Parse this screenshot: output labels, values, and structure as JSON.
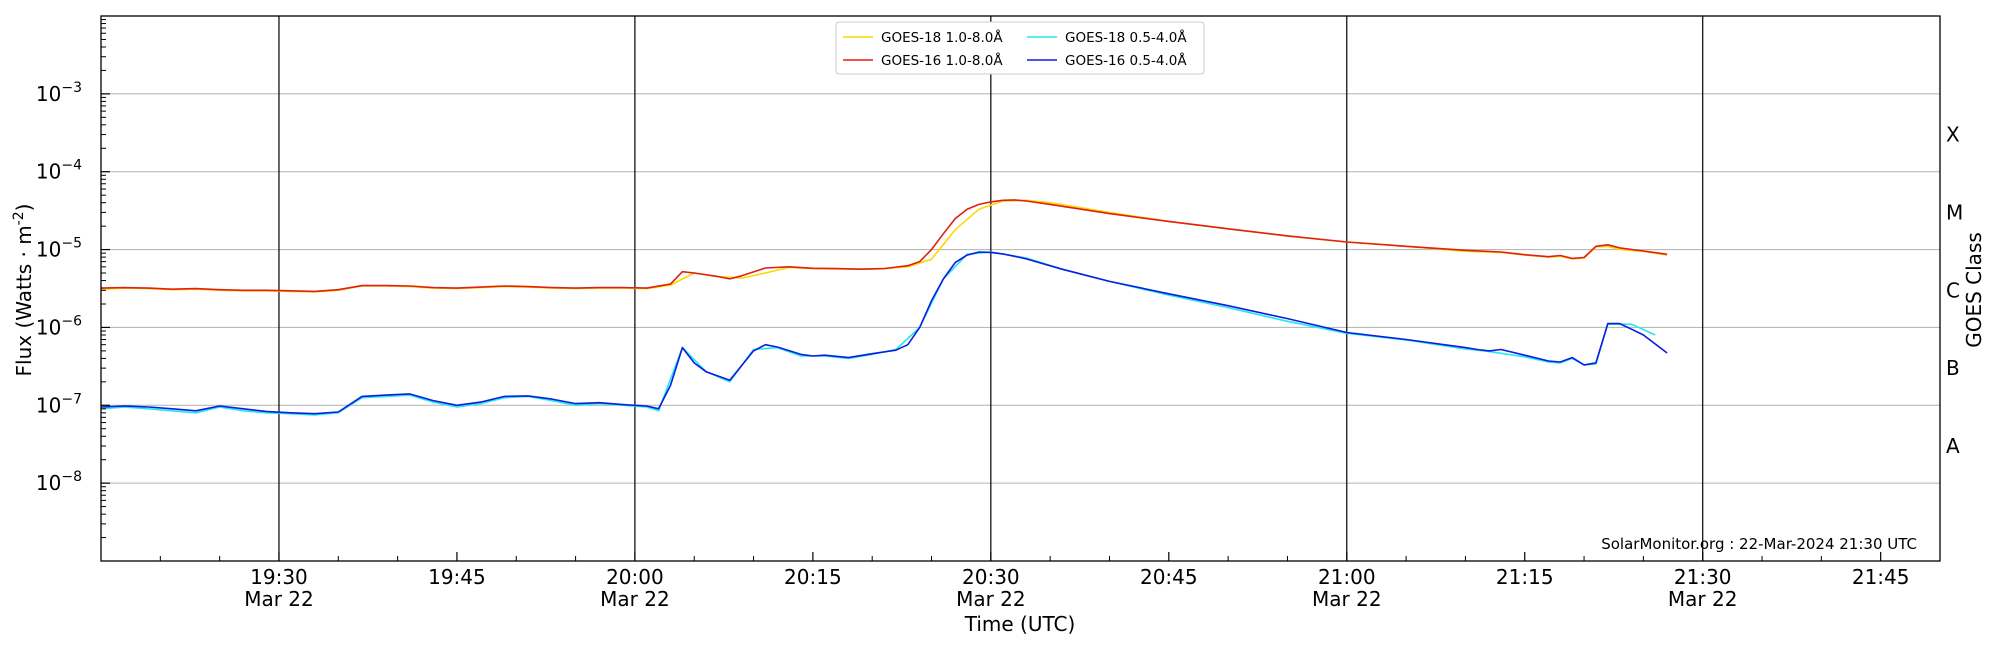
{
  "chart_data": {
    "type": "line",
    "xlabel": "Time (UTC)",
    "ylabel": "Flux (Watts · m",
    "ylabel_sup": "-2",
    "ylabel_close": ")",
    "right_label": "GOES Class",
    "yscale": "log",
    "ylim": [
      1e-09,
      0.01
    ],
    "xlim": [
      "19:15",
      "21:50"
    ],
    "y_ticks": [
      {
        "value": 1e-08,
        "base": "10",
        "exp": "−8"
      },
      {
        "value": 1e-07,
        "base": "10",
        "exp": "−7"
      },
      {
        "value": 1e-06,
        "base": "10",
        "exp": "−6"
      },
      {
        "value": 1e-05,
        "base": "10",
        "exp": "−5"
      },
      {
        "value": 0.0001,
        "base": "10",
        "exp": "−4"
      },
      {
        "value": 0.001,
        "base": "10",
        "exp": "−3"
      }
    ],
    "x_ticks": [
      {
        "time": "19:30",
        "line1": "19:30",
        "line2": "Mar 22",
        "major": true
      },
      {
        "time": "19:45",
        "line1": "19:45",
        "line2": "",
        "major": false
      },
      {
        "time": "20:00",
        "line1": "20:00",
        "line2": "Mar 22",
        "major": true
      },
      {
        "time": "20:15",
        "line1": "20:15",
        "line2": "",
        "major": false
      },
      {
        "time": "20:30",
        "line1": "20:30",
        "line2": "Mar 22",
        "major": true
      },
      {
        "time": "20:45",
        "line1": "20:45",
        "line2": "",
        "major": false
      },
      {
        "time": "21:00",
        "line1": "21:00",
        "line2": "Mar 22",
        "major": true
      },
      {
        "time": "21:15",
        "line1": "21:15",
        "line2": "",
        "major": false
      },
      {
        "time": "21:30",
        "line1": "21:30",
        "line2": "Mar 22",
        "major": true
      },
      {
        "time": "21:45",
        "line1": "21:45",
        "line2": "",
        "major": false
      }
    ],
    "goes_classes": [
      {
        "label": "A",
        "value": 3e-08
      },
      {
        "label": "B",
        "value": 3e-07
      },
      {
        "label": "C",
        "value": 3e-06
      },
      {
        "label": "M",
        "value": 3e-05
      },
      {
        "label": "X",
        "value": 0.0003
      }
    ],
    "grid": true,
    "legend_position": "top-center",
    "credit": "SolarMonitor.org : 22-Mar-2024 21:30 UTC",
    "series": [
      {
        "name": "GOES-18 1.0-8.0Å",
        "color": "#ffd700",
        "x": [
          "19:15",
          "19:17",
          "19:19",
          "19:21",
          "19:23",
          "19:25",
          "19:27",
          "19:29",
          "19:31",
          "19:33",
          "19:35",
          "19:37",
          "19:39",
          "19:41",
          "19:43",
          "19:45",
          "19:47",
          "19:49",
          "19:51",
          "19:53",
          "19:55",
          "19:57",
          "19:59",
          "20:01",
          "20:03",
          "20:05",
          "20:07",
          "20:09",
          "20:11",
          "20:13",
          "20:15",
          "20:17",
          "20:19",
          "20:21",
          "20:23",
          "20:25",
          "20:27",
          "20:29",
          "20:31",
          "20:33",
          "20:35",
          "20:40",
          "20:45",
          "20:50",
          "20:55",
          "21:00",
          "21:05",
          "21:10",
          "21:13",
          "21:15",
          "21:17",
          "21:18",
          "21:19",
          "21:20",
          "21:21",
          "21:22",
          "21:23",
          "21:25",
          "21:27"
        ],
        "y": [
          3.1e-06,
          3.2e-06,
          3.15e-06,
          3.05e-06,
          3.1e-06,
          3e-06,
          2.95e-06,
          2.95e-06,
          2.9e-06,
          2.85e-06,
          3e-06,
          3.4e-06,
          3.4e-06,
          3.35e-06,
          3.2e-06,
          3.15e-06,
          3.25e-06,
          3.35e-06,
          3.3e-06,
          3.2e-06,
          3.15e-06,
          3.2e-06,
          3.2e-06,
          3.15e-06,
          3.5e-06,
          5e-06,
          4.5e-06,
          4.3e-06,
          5e-06,
          5.9e-06,
          5.7e-06,
          5.65e-06,
          5.6e-06,
          5.7e-06,
          6e-06,
          7.5e-06,
          1.8e-05,
          3.3e-05,
          4.2e-05,
          4.3e-05,
          4e-05,
          3e-05,
          2.3e-05,
          1.85e-05,
          1.5e-05,
          1.25e-05,
          1.1e-05,
          9.5e-06,
          9.2e-06,
          8.5e-06,
          8e-06,
          8.2e-06,
          7.6e-06,
          7.8e-06,
          1.08e-05,
          1.1e-05,
          1e-05,
          9.5e-06,
          8.5e-06
        ]
      },
      {
        "name": "GOES-18 0.5-4.0Å",
        "color": "#20e8f0",
        "x": [
          "19:15",
          "19:17",
          "19:19",
          "19:21",
          "19:23",
          "19:25",
          "19:27",
          "19:29",
          "19:31",
          "19:33",
          "19:35",
          "19:37",
          "19:39",
          "19:41",
          "19:43",
          "19:45",
          "19:47",
          "19:49",
          "19:51",
          "19:53",
          "19:55",
          "19:57",
          "19:59",
          "20:01",
          "20:02",
          "20:04",
          "20:06",
          "20:08",
          "20:10",
          "20:12",
          "20:14",
          "20:16",
          "20:18",
          "20:20",
          "20:22",
          "20:24",
          "20:26",
          "20:28",
          "20:30",
          "20:33",
          "20:36",
          "20:40",
          "20:45",
          "20:50",
          "20:55",
          "21:00",
          "21:05",
          "21:10",
          "21:12",
          "21:15",
          "21:17",
          "21:18",
          "21:19",
          "21:20",
          "21:21",
          "21:22",
          "21:24",
          "21:26"
        ],
        "y": [
          9e-08,
          9.5e-08,
          9e-08,
          8.5e-08,
          8e-08,
          9.5e-08,
          8.5e-08,
          8e-08,
          7.8e-08,
          7.5e-08,
          8e-08,
          1.25e-07,
          1.3e-07,
          1.35e-07,
          1.1e-07,
          9.5e-08,
          1.05e-07,
          1.25e-07,
          1.3e-07,
          1.15e-07,
          1e-07,
          1.05e-07,
          1e-07,
          9.5e-08,
          8.5e-08,
          5.5e-07,
          2.7e-07,
          2e-07,
          5.2e-07,
          5.5e-07,
          4.3e-07,
          4.3e-07,
          4e-07,
          4.5e-07,
          5.2e-07,
          1e-06,
          4.2e-06,
          8.7e-06,
          9.3e-06,
          7.8e-06,
          5.6e-06,
          3.9e-06,
          2.6e-06,
          1.8e-06,
          1.2e-06,
          8.4e-07,
          6.9e-07,
          5.3e-07,
          4.9e-07,
          4.2e-07,
          3.6e-07,
          3.5e-07,
          4e-07,
          3.3e-07,
          3.4e-07,
          1.1e-06,
          1.1e-06,
          8e-07
        ]
      },
      {
        "name": "GOES-16 1.0-8.0Å",
        "color": "#e02010",
        "x": [
          "19:15",
          "19:17",
          "19:19",
          "19:21",
          "19:23",
          "19:25",
          "19:27",
          "19:29",
          "19:31",
          "19:33",
          "19:35",
          "19:37",
          "19:39",
          "19:41",
          "19:43",
          "19:45",
          "19:47",
          "19:49",
          "19:51",
          "19:53",
          "19:55",
          "19:57",
          "19:59",
          "20:01",
          "20:03",
          "20:04",
          "20:05",
          "20:07",
          "20:08",
          "20:09",
          "20:11",
          "20:13",
          "20:15",
          "20:17",
          "20:19",
          "20:21",
          "20:23",
          "20:24",
          "20:25",
          "20:26",
          "20:27",
          "20:28",
          "20:29",
          "20:30",
          "20:31",
          "20:32",
          "20:33",
          "20:35",
          "20:40",
          "20:45",
          "20:50",
          "20:55",
          "21:00",
          "21:05",
          "21:10",
          "21:13",
          "21:15",
          "21:17",
          "21:18",
          "21:19",
          "21:20",
          "21:21",
          "21:22",
          "21:23",
          "21:25",
          "21:27"
        ],
        "y": [
          3.2e-06,
          3.25e-06,
          3.2e-06,
          3.1e-06,
          3.15e-06,
          3.05e-06,
          3e-06,
          3e-06,
          2.95e-06,
          2.9e-06,
          3.05e-06,
          3.45e-06,
          3.45e-06,
          3.4e-06,
          3.25e-06,
          3.2e-06,
          3.3e-06,
          3.4e-06,
          3.35e-06,
          3.25e-06,
          3.2e-06,
          3.25e-06,
          3.25e-06,
          3.2e-06,
          3.6e-06,
          5.2e-06,
          5e-06,
          4.5e-06,
          4.2e-06,
          4.6e-06,
          5.8e-06,
          6e-06,
          5.75e-06,
          5.7e-06,
          5.6e-06,
          5.7e-06,
          6.2e-06,
          7e-06,
          1e-05,
          1.6e-05,
          2.5e-05,
          3.3e-05,
          3.8e-05,
          4.1e-05,
          4.3e-05,
          4.35e-05,
          4.2e-05,
          3.8e-05,
          2.9e-05,
          2.3e-05,
          1.85e-05,
          1.5e-05,
          1.25e-05,
          1.1e-05,
          9.8e-06,
          9.3e-06,
          8.6e-06,
          8.1e-06,
          8.4e-06,
          7.7e-06,
          7.9e-06,
          1.1e-05,
          1.15e-05,
          1.05e-05,
          9.6e-06,
          8.7e-06
        ]
      },
      {
        "name": "GOES-16 0.5-4.0Å",
        "color": "#0a1de0",
        "x": [
          "19:15",
          "19:17",
          "19:19",
          "19:21",
          "19:23",
          "19:25",
          "19:27",
          "19:29",
          "19:31",
          "19:33",
          "19:35",
          "19:37",
          "19:39",
          "19:41",
          "19:43",
          "19:45",
          "19:47",
          "19:49",
          "19:51",
          "19:53",
          "19:55",
          "19:57",
          "19:59",
          "20:01",
          "20:02",
          "20:03",
          "20:04",
          "20:05",
          "20:06",
          "20:08",
          "20:10",
          "20:11",
          "20:12",
          "20:14",
          "20:15",
          "20:16",
          "20:18",
          "20:20",
          "20:22",
          "20:23",
          "20:24",
          "20:25",
          "20:26",
          "20:27",
          "20:28",
          "20:29",
          "20:30",
          "20:31",
          "20:32",
          "20:33",
          "20:36",
          "20:40",
          "20:45",
          "20:50",
          "20:55",
          "21:00",
          "21:05",
          "21:10",
          "21:11",
          "21:12",
          "21:13",
          "21:15",
          "21:17",
          "21:18",
          "21:19",
          "21:20",
          "21:21",
          "21:22",
          "21:23",
          "21:24",
          "21:25",
          "21:27"
        ],
        "y": [
          9.5e-08,
          9.8e-08,
          9.5e-08,
          9e-08,
          8.5e-08,
          9.8e-08,
          9e-08,
          8.3e-08,
          8e-08,
          7.8e-08,
          8.2e-08,
          1.3e-07,
          1.35e-07,
          1.4e-07,
          1.15e-07,
          1e-07,
          1.1e-07,
          1.3e-07,
          1.32e-07,
          1.2e-07,
          1.05e-07,
          1.08e-07,
          1.02e-07,
          9.8e-08,
          9e-08,
          1.8e-07,
          5.5e-07,
          3.5e-07,
          2.7e-07,
          2.1e-07,
          5e-07,
          6e-07,
          5.6e-07,
          4.5e-07,
          4.3e-07,
          4.4e-07,
          4.1e-07,
          4.6e-07,
          5.1e-07,
          6e-07,
          1e-06,
          2.2e-06,
          4.2e-06,
          6.8e-06,
          8.5e-06,
          9.3e-06,
          9.2e-06,
          8.8e-06,
          8.2e-06,
          7.6e-06,
          5.6e-06,
          3.9e-06,
          2.7e-06,
          1.9e-06,
          1.3e-06,
          8.6e-07,
          7e-07,
          5.5e-07,
          5.2e-07,
          5e-07,
          5.2e-07,
          4.4e-07,
          3.7e-07,
          3.6e-07,
          4.1e-07,
          3.3e-07,
          3.5e-07,
          1.12e-06,
          1.12e-06,
          9.5e-07,
          8e-07,
          4.7e-07
        ]
      }
    ]
  }
}
